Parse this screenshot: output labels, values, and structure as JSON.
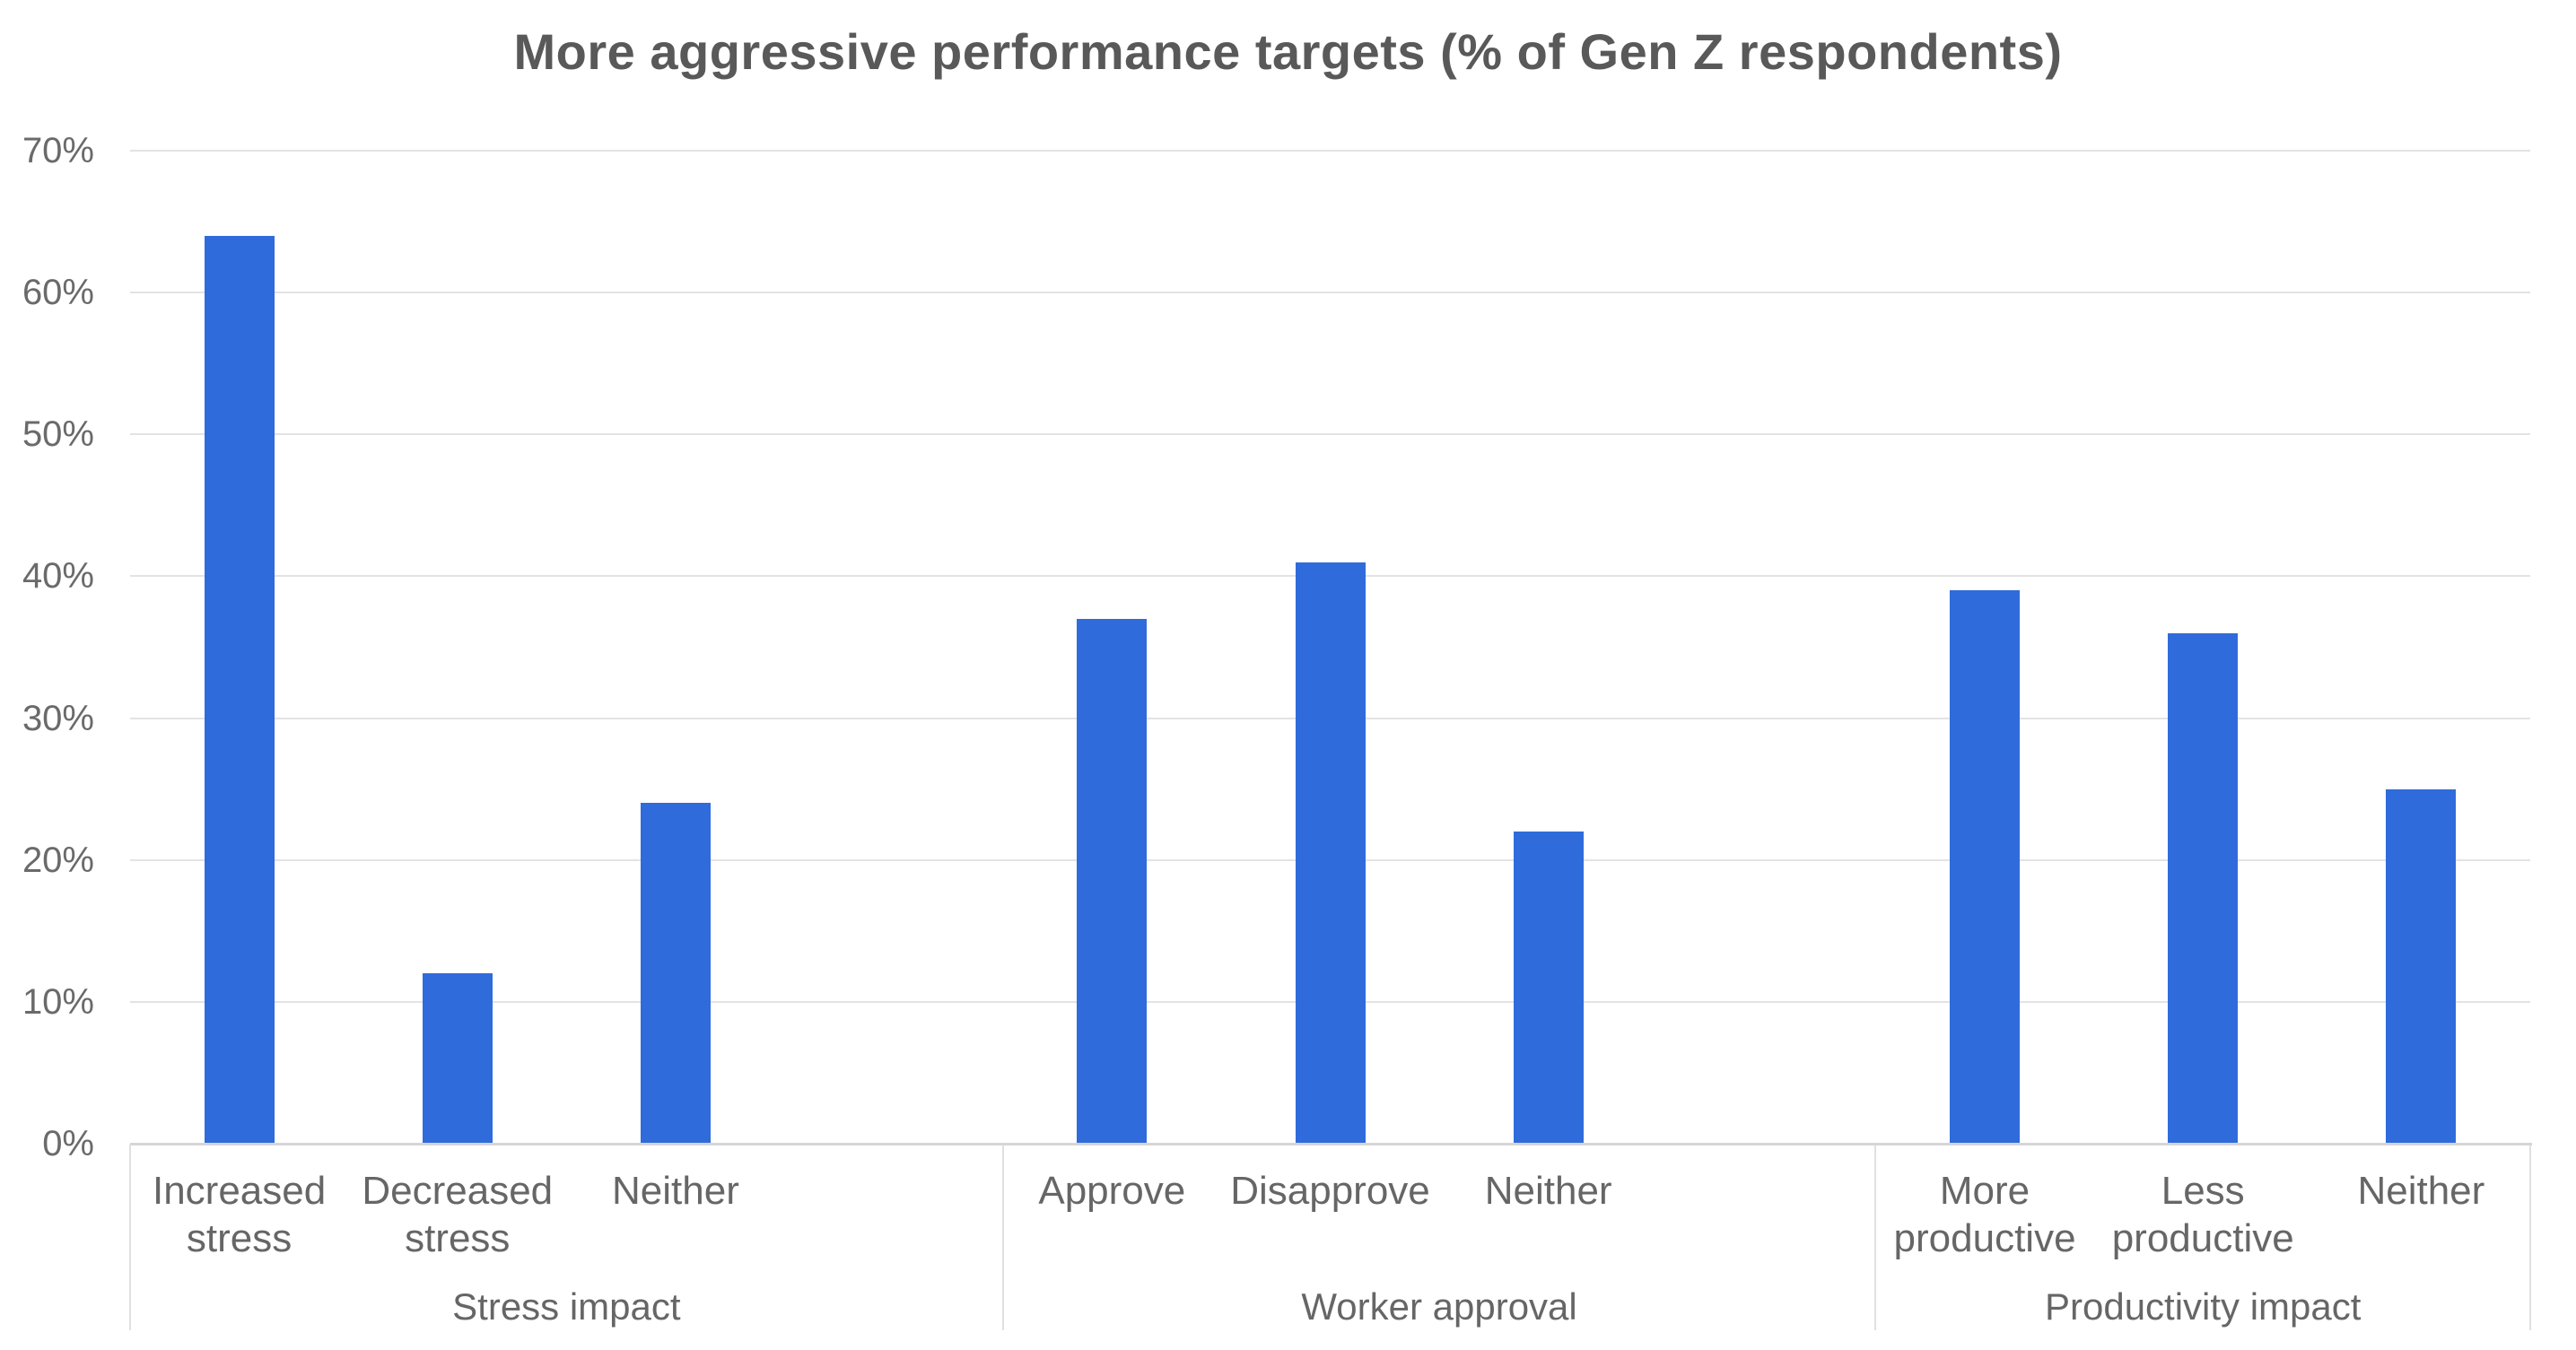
{
  "chart_data": {
    "type": "bar",
    "title": "More aggressive performance targets (% of Gen Z respondents)",
    "groups": [
      {
        "label": "Stress impact",
        "categories": [
          "Increased\nstress",
          "Decreased\nstress",
          "Neither"
        ],
        "values": [
          64,
          12,
          24
        ]
      },
      {
        "label": "Worker approval",
        "categories": [
          "Approve",
          "Disapprove",
          "Neither"
        ],
        "values": [
          37,
          41,
          22
        ]
      },
      {
        "label": "Productivity impact",
        "categories": [
          "More\nproductive",
          "Less\nproductive",
          "Neither"
        ],
        "values": [
          39,
          36,
          25
        ]
      }
    ],
    "y_ticks": [
      "70%",
      "60%",
      "50%",
      "40%",
      "30%",
      "20%",
      "10%",
      "0%"
    ],
    "y_tick_values": [
      70,
      60,
      50,
      40,
      30,
      20,
      10,
      0
    ],
    "ylim": [
      0,
      70
    ],
    "unit": "%",
    "grid": "horizontal",
    "legend": "none",
    "colors": {
      "bar": "#2F6BDB",
      "gridline": "#E3E3E3",
      "axis_line": "#D6D6D6",
      "divider_line": "#E0E0E0",
      "title_text": "#595959",
      "tick_text": "#6A6A6A",
      "category_text": "#666666",
      "group_text": "#666666",
      "background": "#FFFFFF"
    }
  }
}
